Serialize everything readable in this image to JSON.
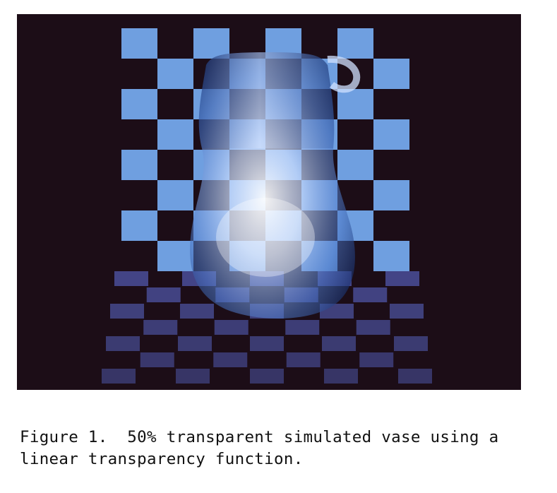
{
  "figure": {
    "image_description_icon": "transparent-vase-checkerboard-image",
    "colors": {
      "background": "#1c0d17",
      "check_light": "#6f9fe0",
      "check_floor": "#4a4f9a",
      "vase_highlight": "#f2f6ff",
      "vase_shadow": "#1e3b80"
    }
  },
  "caption": {
    "line1": "Figure 1.  50% transparent simulated vase using a",
    "line2": "linear transparency function."
  }
}
